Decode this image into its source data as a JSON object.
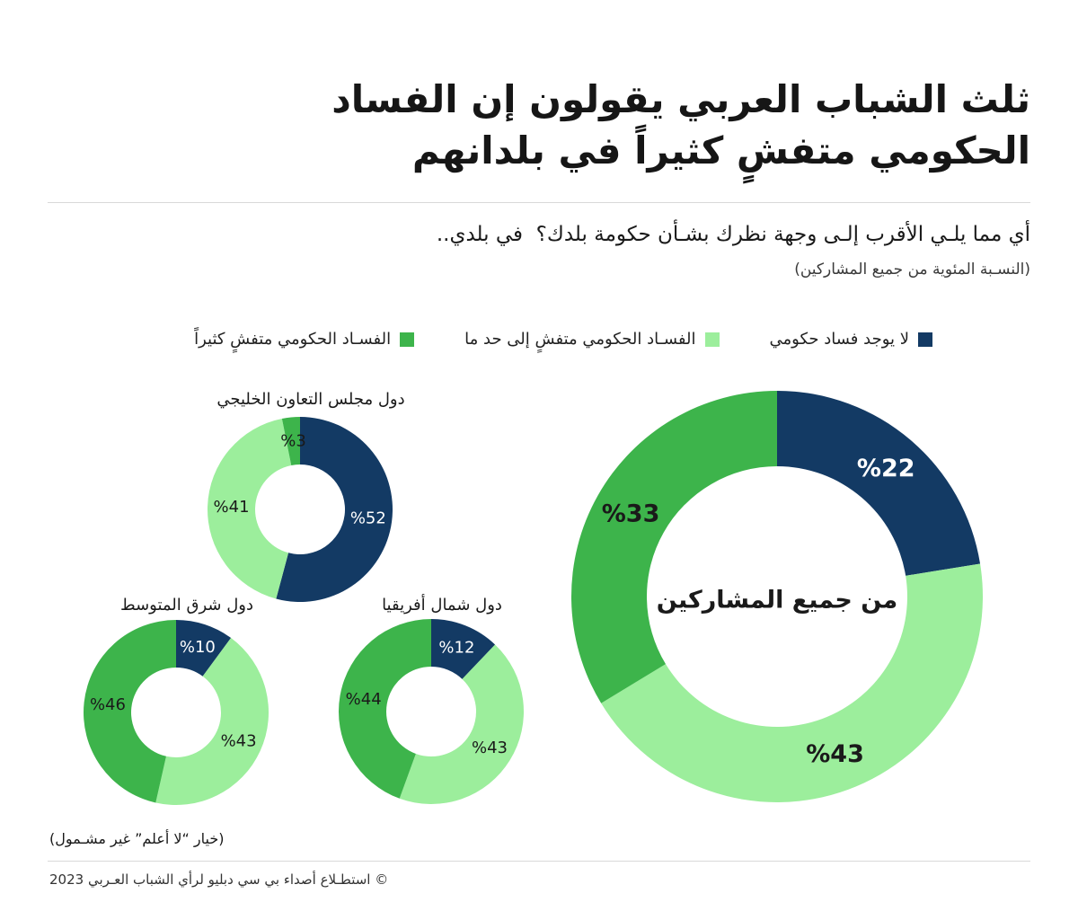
{
  "title": {
    "line1": "ثلث الشباب العربي يقولون إن الفساد",
    "line2": "الحكومي متفشٍ كثيراً في بلدانهم"
  },
  "question": "أي مما يلـي الأقرب إلـى وجهة نظرك بشـأن حكومة بلدك؟  في بلدي..",
  "subtitle": "(النسـبة المئوية من جميع المشاركين)",
  "series_colors": [
    "#133A64",
    "#9CEE9C",
    "#3DB44B"
  ],
  "label_colors": [
    "#FFFFFF",
    "#1A1A1A",
    "#1A1A1A"
  ],
  "chart_data": [
    {
      "type": "pie",
      "title": "من جميع المشاركين",
      "categories": [
        "لا يوجد فساد حكومي",
        "الفسـاد الحكومي متفشٍ إلى حد ما",
        "الفسـاد الحكومي متفشٍ كثيراً"
      ],
      "values": [
        22,
        43,
        33
      ],
      "labels": [
        "%22",
        "%43",
        "%33"
      ]
    },
    {
      "type": "pie",
      "title": "دول مجلس التعاون الخليجي",
      "values": [
        52,
        41,
        3
      ],
      "labels": [
        "%52",
        "%41",
        "%3"
      ]
    },
    {
      "type": "pie",
      "title": "دول شمال أفريقيا",
      "values": [
        12,
        43,
        44
      ],
      "labels": [
        "%12",
        "%43",
        "%44"
      ]
    },
    {
      "type": "pie",
      "title": "دول شرق المتوسط",
      "values": [
        10,
        43,
        46
      ],
      "labels": [
        "%10",
        "%43",
        "%46"
      ]
    }
  ],
  "footnote": "(خيار “لا أعلم” غير مشـمول)",
  "footer": "© استطـلاع أصداء بي سي دبليو لرأي الشباب العـربي 2023"
}
